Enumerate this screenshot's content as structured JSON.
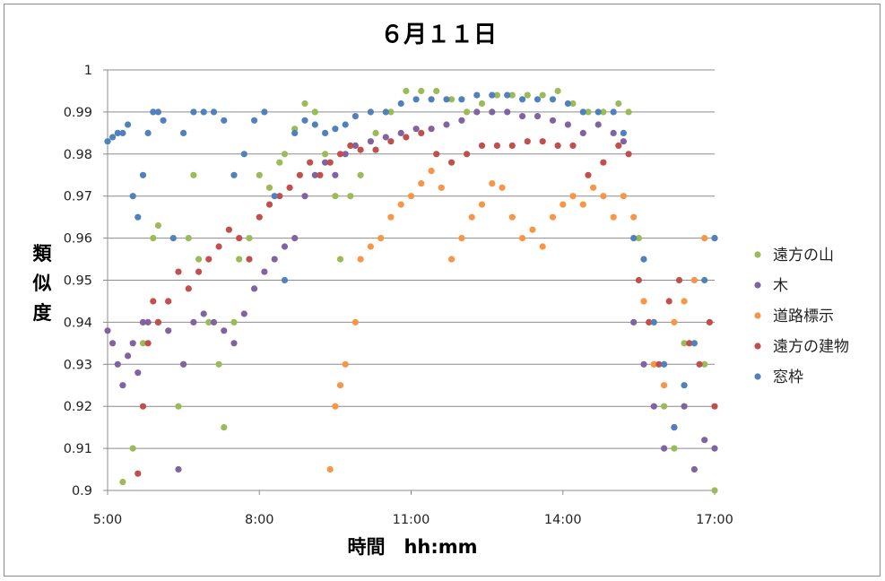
{
  "chart_data": {
    "type": "scatter",
    "title": "６月１１日",
    "xlabel": "時間　hh:mm",
    "ylabel": "類似度",
    "xlim": [
      5,
      17
    ],
    "ylim": [
      0.9,
      1.0
    ],
    "x_ticks": [
      "5:00",
      "8:00",
      "11:00",
      "14:00",
      "17:00"
    ],
    "y_ticks": [
      "0.9",
      "0.91",
      "0.92",
      "0.93",
      "0.94",
      "0.95",
      "0.96",
      "0.97",
      "0.98",
      "0.99",
      "1"
    ],
    "grid": true,
    "legend_position": "right",
    "series": [
      {
        "name": "遠方の山",
        "color": "#9bbb59",
        "points": [
          [
            5.3,
            0.902
          ],
          [
            5.5,
            0.91
          ],
          [
            5.7,
            0.935
          ],
          [
            5.9,
            0.96
          ],
          [
            6.0,
            0.963
          ],
          [
            6.2,
            0.945
          ],
          [
            6.4,
            0.92
          ],
          [
            6.5,
            0.93
          ],
          [
            6.6,
            0.96
          ],
          [
            6.7,
            0.975
          ],
          [
            6.8,
            0.955
          ],
          [
            7.0,
            0.94
          ],
          [
            7.2,
            0.93
          ],
          [
            7.3,
            0.915
          ],
          [
            7.5,
            0.94
          ],
          [
            7.6,
            0.955
          ],
          [
            7.8,
            0.96
          ],
          [
            8.0,
            0.975
          ],
          [
            8.2,
            0.972
          ],
          [
            8.4,
            0.978
          ],
          [
            8.5,
            0.98
          ],
          [
            8.7,
            0.986
          ],
          [
            8.9,
            0.992
          ],
          [
            9.1,
            0.99
          ],
          [
            9.3,
            0.98
          ],
          [
            9.5,
            0.97
          ],
          [
            9.6,
            0.955
          ],
          [
            9.8,
            0.97
          ],
          [
            10.0,
            0.975
          ],
          [
            10.3,
            0.985
          ],
          [
            10.6,
            0.99
          ],
          [
            10.9,
            0.995
          ],
          [
            11.2,
            0.995
          ],
          [
            11.5,
            0.995
          ],
          [
            11.8,
            0.993
          ],
          [
            12.1,
            0.99
          ],
          [
            12.4,
            0.992
          ],
          [
            12.7,
            0.994
          ],
          [
            13.0,
            0.994
          ],
          [
            13.3,
            0.994
          ],
          [
            13.6,
            0.994
          ],
          [
            13.9,
            0.995
          ],
          [
            14.2,
            0.992
          ],
          [
            14.5,
            0.99
          ],
          [
            14.8,
            0.99
          ],
          [
            15.1,
            0.992
          ],
          [
            15.3,
            0.99
          ],
          [
            15.5,
            0.96
          ],
          [
            15.6,
            0.945
          ],
          [
            15.8,
            0.93
          ],
          [
            16.0,
            0.92
          ],
          [
            16.2,
            0.91
          ],
          [
            16.4,
            0.935
          ],
          [
            16.6,
            0.95
          ],
          [
            16.8,
            0.93
          ],
          [
            17.0,
            0.9
          ]
        ]
      },
      {
        "name": "木",
        "color": "#8064a2",
        "points": [
          [
            5.0,
            0.938
          ],
          [
            5.1,
            0.935
          ],
          [
            5.2,
            0.93
          ],
          [
            5.3,
            0.925
          ],
          [
            5.4,
            0.932
          ],
          [
            5.5,
            0.935
          ],
          [
            5.6,
            0.928
          ],
          [
            5.7,
            0.94
          ],
          [
            5.8,
            0.94
          ],
          [
            6.0,
            0.94
          ],
          [
            6.2,
            0.938
          ],
          [
            6.4,
            0.905
          ],
          [
            6.5,
            0.93
          ],
          [
            6.7,
            0.94
          ],
          [
            6.9,
            0.942
          ],
          [
            7.1,
            0.94
          ],
          [
            7.3,
            0.938
          ],
          [
            7.5,
            0.935
          ],
          [
            7.7,
            0.942
          ],
          [
            7.9,
            0.948
          ],
          [
            8.1,
            0.952
          ],
          [
            8.3,
            0.955
          ],
          [
            8.5,
            0.958
          ],
          [
            8.7,
            0.96
          ],
          [
            8.9,
            0.97
          ],
          [
            9.1,
            0.975
          ],
          [
            9.3,
            0.978
          ],
          [
            9.5,
            0.975
          ],
          [
            9.7,
            0.98
          ],
          [
            9.9,
            0.982
          ],
          [
            10.2,
            0.983
          ],
          [
            10.5,
            0.984
          ],
          [
            10.8,
            0.985
          ],
          [
            11.1,
            0.986
          ],
          [
            11.4,
            0.986
          ],
          [
            11.7,
            0.987
          ],
          [
            12.0,
            0.988
          ],
          [
            12.3,
            0.99
          ],
          [
            12.6,
            0.99
          ],
          [
            12.9,
            0.99
          ],
          [
            13.2,
            0.989
          ],
          [
            13.5,
            0.989
          ],
          [
            13.8,
            0.988
          ],
          [
            14.1,
            0.987
          ],
          [
            14.4,
            0.985
          ],
          [
            14.7,
            0.987
          ],
          [
            15.0,
            0.985
          ],
          [
            15.2,
            0.983
          ],
          [
            15.4,
            0.94
          ],
          [
            15.6,
            0.93
          ],
          [
            15.8,
            0.92
          ],
          [
            16.0,
            0.91
          ],
          [
            16.2,
            0.915
          ],
          [
            16.4,
            0.92
          ],
          [
            16.6,
            0.905
          ],
          [
            16.8,
            0.912
          ],
          [
            17.0,
            0.91
          ]
        ]
      },
      {
        "name": "道路標示",
        "color": "#f79646",
        "points": [
          [
            9.4,
            0.905
          ],
          [
            9.5,
            0.92
          ],
          [
            9.6,
            0.925
          ],
          [
            9.7,
            0.93
          ],
          [
            9.9,
            0.94
          ],
          [
            10.0,
            0.955
          ],
          [
            10.2,
            0.958
          ],
          [
            10.4,
            0.96
          ],
          [
            10.6,
            0.965
          ],
          [
            10.8,
            0.968
          ],
          [
            11.0,
            0.97
          ],
          [
            11.2,
            0.973
          ],
          [
            11.4,
            0.976
          ],
          [
            11.6,
            0.972
          ],
          [
            11.8,
            0.955
          ],
          [
            12.0,
            0.96
          ],
          [
            12.2,
            0.965
          ],
          [
            12.4,
            0.968
          ],
          [
            12.6,
            0.973
          ],
          [
            12.8,
            0.972
          ],
          [
            13.0,
            0.965
          ],
          [
            13.2,
            0.96
          ],
          [
            13.4,
            0.962
          ],
          [
            13.6,
            0.958
          ],
          [
            13.8,
            0.965
          ],
          [
            14.0,
            0.968
          ],
          [
            14.2,
            0.97
          ],
          [
            14.4,
            0.968
          ],
          [
            14.6,
            0.972
          ],
          [
            14.8,
            0.97
          ],
          [
            15.0,
            0.965
          ],
          [
            15.2,
            0.97
          ],
          [
            15.4,
            0.965
          ],
          [
            15.6,
            0.945
          ],
          [
            15.8,
            0.93
          ],
          [
            16.0,
            0.925
          ],
          [
            16.2,
            0.94
          ],
          [
            16.4,
            0.945
          ],
          [
            16.6,
            0.95
          ],
          [
            16.8,
            0.96
          ],
          [
            17.0,
            0.96
          ]
        ]
      },
      {
        "name": "遠方の建物",
        "color": "#c0504d",
        "points": [
          [
            5.6,
            0.904
          ],
          [
            5.7,
            0.92
          ],
          [
            5.8,
            0.935
          ],
          [
            5.9,
            0.945
          ],
          [
            6.0,
            0.94
          ],
          [
            6.2,
            0.945
          ],
          [
            6.4,
            0.952
          ],
          [
            6.6,
            0.948
          ],
          [
            6.8,
            0.952
          ],
          [
            7.0,
            0.955
          ],
          [
            7.2,
            0.958
          ],
          [
            7.4,
            0.962
          ],
          [
            7.6,
            0.96
          ],
          [
            7.8,
            0.955
          ],
          [
            8.0,
            0.965
          ],
          [
            8.2,
            0.968
          ],
          [
            8.4,
            0.97
          ],
          [
            8.6,
            0.972
          ],
          [
            8.8,
            0.975
          ],
          [
            9.0,
            0.978
          ],
          [
            9.2,
            0.975
          ],
          [
            9.4,
            0.978
          ],
          [
            9.6,
            0.98
          ],
          [
            9.8,
            0.982
          ],
          [
            10.0,
            0.981
          ],
          [
            10.3,
            0.981
          ],
          [
            10.6,
            0.983
          ],
          [
            10.9,
            0.984
          ],
          [
            11.2,
            0.985
          ],
          [
            11.5,
            0.98
          ],
          [
            11.8,
            0.978
          ],
          [
            12.1,
            0.98
          ],
          [
            12.4,
            0.982
          ],
          [
            12.7,
            0.982
          ],
          [
            13.0,
            0.982
          ],
          [
            13.3,
            0.983
          ],
          [
            13.6,
            0.983
          ],
          [
            13.9,
            0.982
          ],
          [
            14.2,
            0.982
          ],
          [
            14.5,
            0.975
          ],
          [
            14.8,
            0.978
          ],
          [
            15.1,
            0.982
          ],
          [
            15.3,
            0.98
          ],
          [
            15.5,
            0.95
          ],
          [
            15.7,
            0.94
          ],
          [
            15.9,
            0.93
          ],
          [
            16.1,
            0.945
          ],
          [
            16.3,
            0.95
          ],
          [
            16.5,
            0.935
          ],
          [
            16.7,
            0.93
          ],
          [
            16.9,
            0.94
          ],
          [
            17.0,
            0.92
          ]
        ]
      },
      {
        "name": "窓枠",
        "color": "#4f81bd",
        "points": [
          [
            5.0,
            0.983
          ],
          [
            5.1,
            0.984
          ],
          [
            5.2,
            0.985
          ],
          [
            5.3,
            0.985
          ],
          [
            5.4,
            0.987
          ],
          [
            5.5,
            0.97
          ],
          [
            5.6,
            0.965
          ],
          [
            5.7,
            0.975
          ],
          [
            5.8,
            0.985
          ],
          [
            5.9,
            0.99
          ],
          [
            6.0,
            0.99
          ],
          [
            6.1,
            0.988
          ],
          [
            6.3,
            0.96
          ],
          [
            6.5,
            0.985
          ],
          [
            6.7,
            0.99
          ],
          [
            6.9,
            0.99
          ],
          [
            7.1,
            0.99
          ],
          [
            7.3,
            0.988
          ],
          [
            7.5,
            0.975
          ],
          [
            7.7,
            0.98
          ],
          [
            7.9,
            0.988
          ],
          [
            8.1,
            0.99
          ],
          [
            8.3,
            0.97
          ],
          [
            8.5,
            0.95
          ],
          [
            8.7,
            0.985
          ],
          [
            8.9,
            0.988
          ],
          [
            9.1,
            0.987
          ],
          [
            9.3,
            0.985
          ],
          [
            9.5,
            0.986
          ],
          [
            9.7,
            0.987
          ],
          [
            9.9,
            0.989
          ],
          [
            10.2,
            0.99
          ],
          [
            10.5,
            0.99
          ],
          [
            10.8,
            0.992
          ],
          [
            11.1,
            0.993
          ],
          [
            11.4,
            0.993
          ],
          [
            11.7,
            0.993
          ],
          [
            12.0,
            0.993
          ],
          [
            12.3,
            0.994
          ],
          [
            12.6,
            0.994
          ],
          [
            12.9,
            0.994
          ],
          [
            13.2,
            0.993
          ],
          [
            13.5,
            0.993
          ],
          [
            13.8,
            0.993
          ],
          [
            14.1,
            0.992
          ],
          [
            14.4,
            0.99
          ],
          [
            14.7,
            0.99
          ],
          [
            15.0,
            0.99
          ],
          [
            15.2,
            0.985
          ],
          [
            15.4,
            0.96
          ],
          [
            15.6,
            0.955
          ],
          [
            15.8,
            0.94
          ],
          [
            16.0,
            0.93
          ],
          [
            16.2,
            0.915
          ],
          [
            16.4,
            0.925
          ],
          [
            16.6,
            0.935
          ],
          [
            16.8,
            0.95
          ],
          [
            17.0,
            0.96
          ]
        ]
      }
    ]
  }
}
